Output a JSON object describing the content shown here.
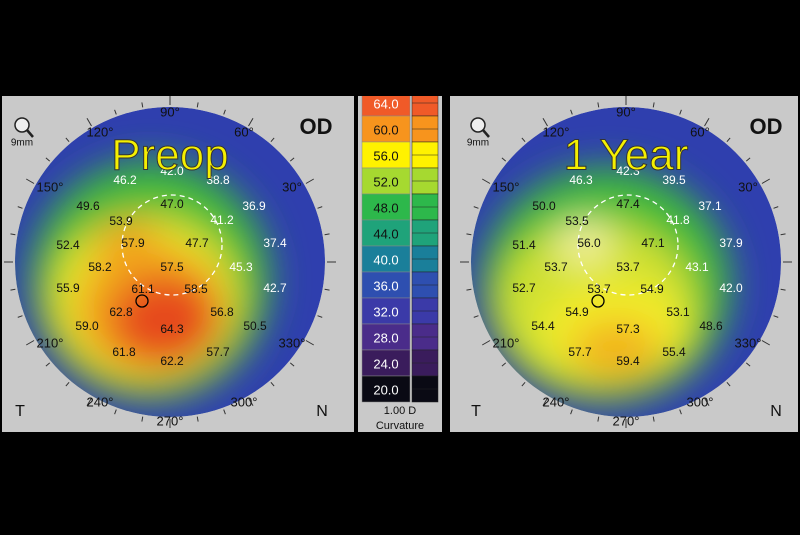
{
  "maps": [
    {
      "title": "Preop",
      "eye": "OD",
      "zoom": "9mm",
      "left": "T",
      "right": "N",
      "angles": [
        "90°",
        "120°",
        "60°",
        "150°",
        "30°",
        "210°",
        "330°",
        "240°",
        "300°",
        "270°"
      ],
      "values": [
        "46.2",
        "42.0",
        "38.8",
        "49.6",
        "47.0",
        "36.9",
        "53.9",
        "41.2",
        "52.4",
        "57.9",
        "47.7",
        "37.4",
        "58.2",
        "57.5",
        "45.3",
        "55.9",
        "61.1",
        "58.5",
        "42.7",
        "62.8",
        "56.8",
        "59.0",
        "64.3",
        "50.5",
        "61.8",
        "62.2",
        "57.7"
      ]
    },
    {
      "title": "1 Year",
      "eye": "OD",
      "zoom": "9mm",
      "left": "T",
      "right": "N",
      "angles": [
        "90°",
        "120°",
        "60°",
        "150°",
        "30°",
        "210°",
        "330°",
        "240°",
        "300°",
        "270°"
      ],
      "values": [
        "46.3",
        "42.3",
        "39.5",
        "50.0",
        "47.4",
        "37.1",
        "53.5",
        "41.8",
        "51.4",
        "56.0",
        "47.1",
        "37.9",
        "53.7",
        "53.7",
        "43.1",
        "52.7",
        "53.7",
        "54.9",
        "42.0",
        "54.9",
        "53.1",
        "54.4",
        "57.3",
        "48.6",
        "57.7",
        "59.4",
        "55.4"
      ]
    }
  ],
  "scale": {
    "labels": [
      "64.0",
      "60.0",
      "56.0",
      "52.0",
      "48.0",
      "44.0",
      "40.0",
      "36.0",
      "32.0",
      "28.0",
      "24.0",
      "20.0"
    ],
    "colors": [
      "#f05a28",
      "#f7941d",
      "#fff200",
      "#a6d930",
      "#2db84b",
      "#1fa37a",
      "#1a7f9a",
      "#2e4fb0",
      "#3b3aa8",
      "#4a2c8a",
      "#3a1c5c",
      "#0a0a14"
    ],
    "step": "1.00 D",
    "kind": "Curvature"
  }
}
